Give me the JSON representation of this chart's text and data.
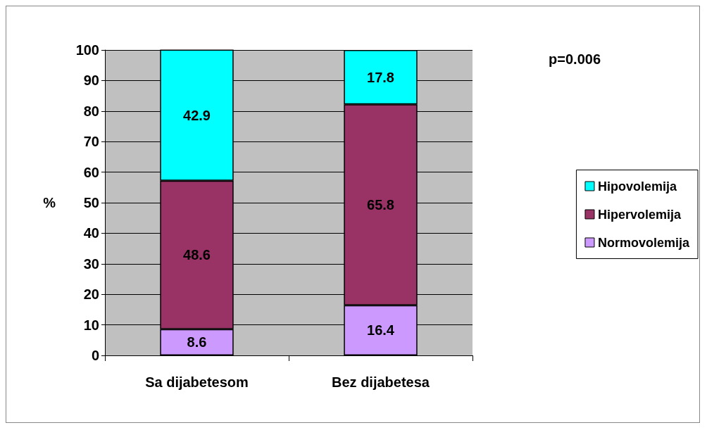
{
  "chart_data": {
    "type": "bar",
    "stacked": true,
    "categories": [
      "Sa dijabetesom",
      "Bez dijabetesa"
    ],
    "series": [
      {
        "name": "Normovolemija",
        "color": "#cc99ff",
        "values": [
          8.6,
          16.4
        ]
      },
      {
        "name": "Hipervolemija",
        "color": "#993366",
        "values": [
          48.6,
          65.8
        ]
      },
      {
        "name": "Hipovolemija",
        "color": "#00ffff",
        "values": [
          42.9,
          17.8
        ]
      }
    ],
    "ylabel": "%",
    "ylim": [
      0,
      100
    ],
    "yticks": [
      0,
      10,
      20,
      30,
      40,
      50,
      60,
      70,
      80,
      90,
      100
    ],
    "grid": "y",
    "legend": "right",
    "data_labels": true,
    "annotations": [
      "p=0.006"
    ]
  }
}
